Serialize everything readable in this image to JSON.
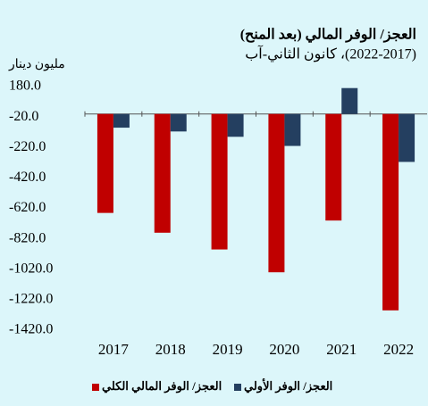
{
  "chart_data": {
    "type": "bar",
    "title": "العجز/ الوفر المالي (بعد المنح)",
    "subtitle": "(2022-2017)، كانون الثاني-آب",
    "y_axis_label": "مليون دينار",
    "categories": [
      "2017",
      "2018",
      "2019",
      "2020",
      "2021",
      "2022"
    ],
    "series": [
      {
        "name": "العجز/ الوفر المالي الكلي",
        "color": "#c00000",
        "values": [
          -650,
          -780,
          -890,
          -1040,
          -700,
          -1290
        ]
      },
      {
        "name": "العجز/ الوفر الأولي",
        "color": "#243f60",
        "values": [
          -90,
          -115,
          -150,
          -210,
          170,
          -315
        ]
      }
    ],
    "ylim": [
      -1420,
      180
    ],
    "yticks": [
      {
        "value": 180,
        "label": "180.0"
      },
      {
        "value": -20,
        "label": "-20.0"
      },
      {
        "value": -220,
        "label": "-220.0"
      },
      {
        "value": -420,
        "label": "-420.0"
      },
      {
        "value": -620,
        "label": "-620.0"
      },
      {
        "value": -820,
        "label": "-820.0"
      },
      {
        "value": -1020,
        "label": "-1020.0"
      },
      {
        "value": -1220,
        "label": "-1220.0"
      },
      {
        "value": -1420,
        "label": "-1420.0"
      }
    ],
    "grid": false,
    "legend": "bottom"
  }
}
